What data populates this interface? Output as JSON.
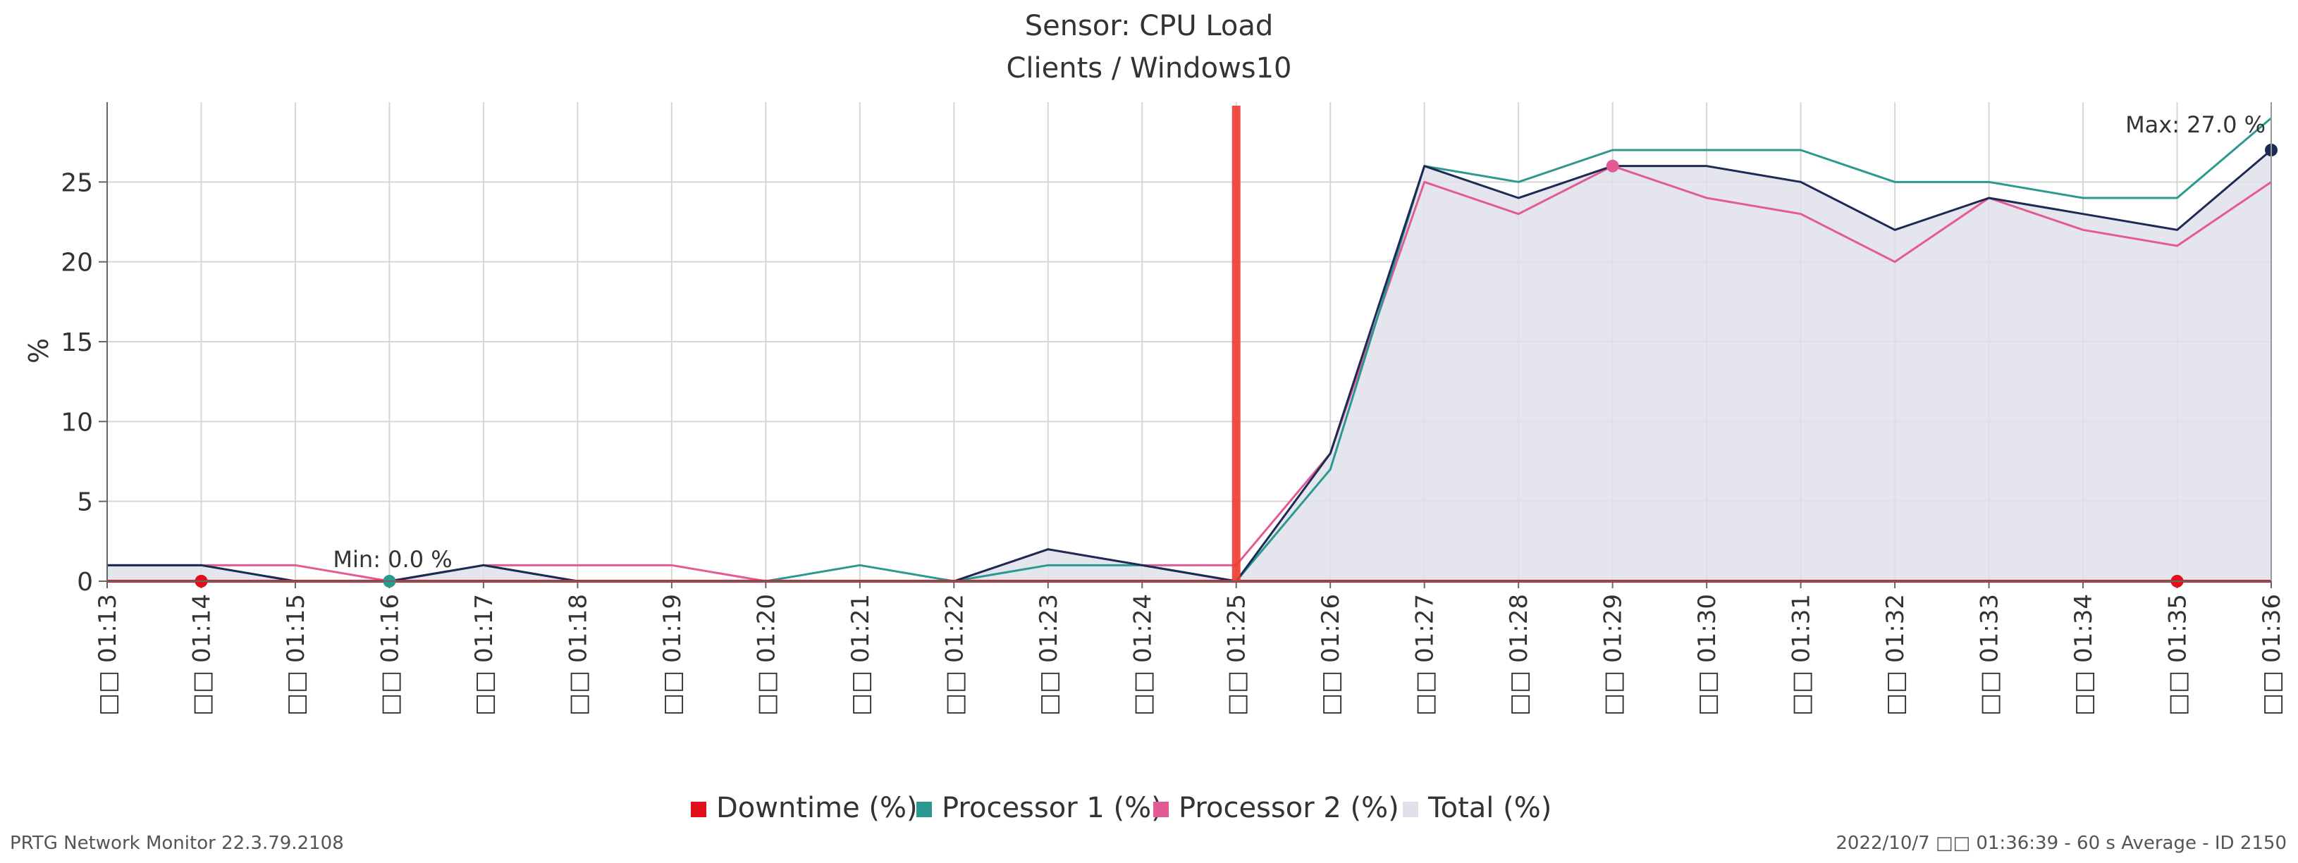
{
  "chart_data": {
    "type": "area",
    "title": "Sensor: CPU Load",
    "subtitle": "Clients / Windows10",
    "ylabel": "%",
    "xlabel": "",
    "ylim": [
      0,
      30
    ],
    "yticks": [
      0,
      5,
      10,
      15,
      20,
      25
    ],
    "grid": true,
    "legend_position": "bottom-center",
    "categories": [
      "01:13",
      "01:14",
      "01:15",
      "01:16",
      "01:17",
      "01:18",
      "01:19",
      "01:20",
      "01:21",
      "01:22",
      "01:23",
      "01:24",
      "01:25",
      "01:26",
      "01:27",
      "01:28",
      "01:29",
      "01:30",
      "01:31",
      "01:32",
      "01:33",
      "01:34",
      "01:35",
      "01:36"
    ],
    "date_prefix": "□□",
    "series": [
      {
        "name": "Downtime (%)",
        "color": "#e0101a",
        "values": [
          0,
          0,
          0,
          0,
          0,
          0,
          0,
          0,
          0,
          0,
          0,
          0,
          0,
          0,
          0,
          0,
          0,
          0,
          0,
          0,
          0,
          0,
          0,
          0
        ]
      },
      {
        "name": "Processor 1 (%)",
        "color": "#2b9990",
        "values": [
          1,
          1,
          0,
          0,
          1,
          0,
          0,
          0,
          1,
          0,
          1,
          1,
          0,
          7,
          26,
          25,
          27,
          27,
          27,
          25,
          25,
          24,
          24,
          29
        ]
      },
      {
        "name": "Processor 2 (%)",
        "color": "#e35b94",
        "values": [
          1,
          1,
          1,
          0,
          1,
          1,
          1,
          0,
          0,
          0,
          2,
          1,
          1,
          8,
          25,
          23,
          26,
          24,
          23,
          20,
          24,
          22,
          21,
          25
        ]
      },
      {
        "name": "Total (%)",
        "color": "#dfe0ea",
        "line_color": "#1c2a55",
        "values": [
          1,
          1,
          0,
          0,
          1,
          0,
          0,
          0,
          0,
          0,
          2,
          1,
          0,
          8,
          26,
          24,
          26,
          26,
          25,
          22,
          24,
          23,
          22,
          27
        ]
      }
    ],
    "annotations": [
      {
        "label": "Min: 0.0 %",
        "category": "01:16",
        "value": 0
      },
      {
        "label": "Max: 27.0 %",
        "category": "01:36",
        "value": 27
      }
    ],
    "event_marker": {
      "category": "01:25",
      "color": "#ee3b2f"
    },
    "downtime_markers": [
      "01:14",
      "01:35"
    ],
    "highlight_points": [
      {
        "category": "01:16",
        "value": 0,
        "color": "#2b9990"
      },
      {
        "category": "01:29",
        "value": 26,
        "color": "#e35b94"
      }
    ]
  },
  "footer": {
    "left": "PRTG Network Monitor 22.3.79.2108",
    "right": "2022/10/7 □□ 01:36:39 - 60 s Average - ID 2150"
  }
}
